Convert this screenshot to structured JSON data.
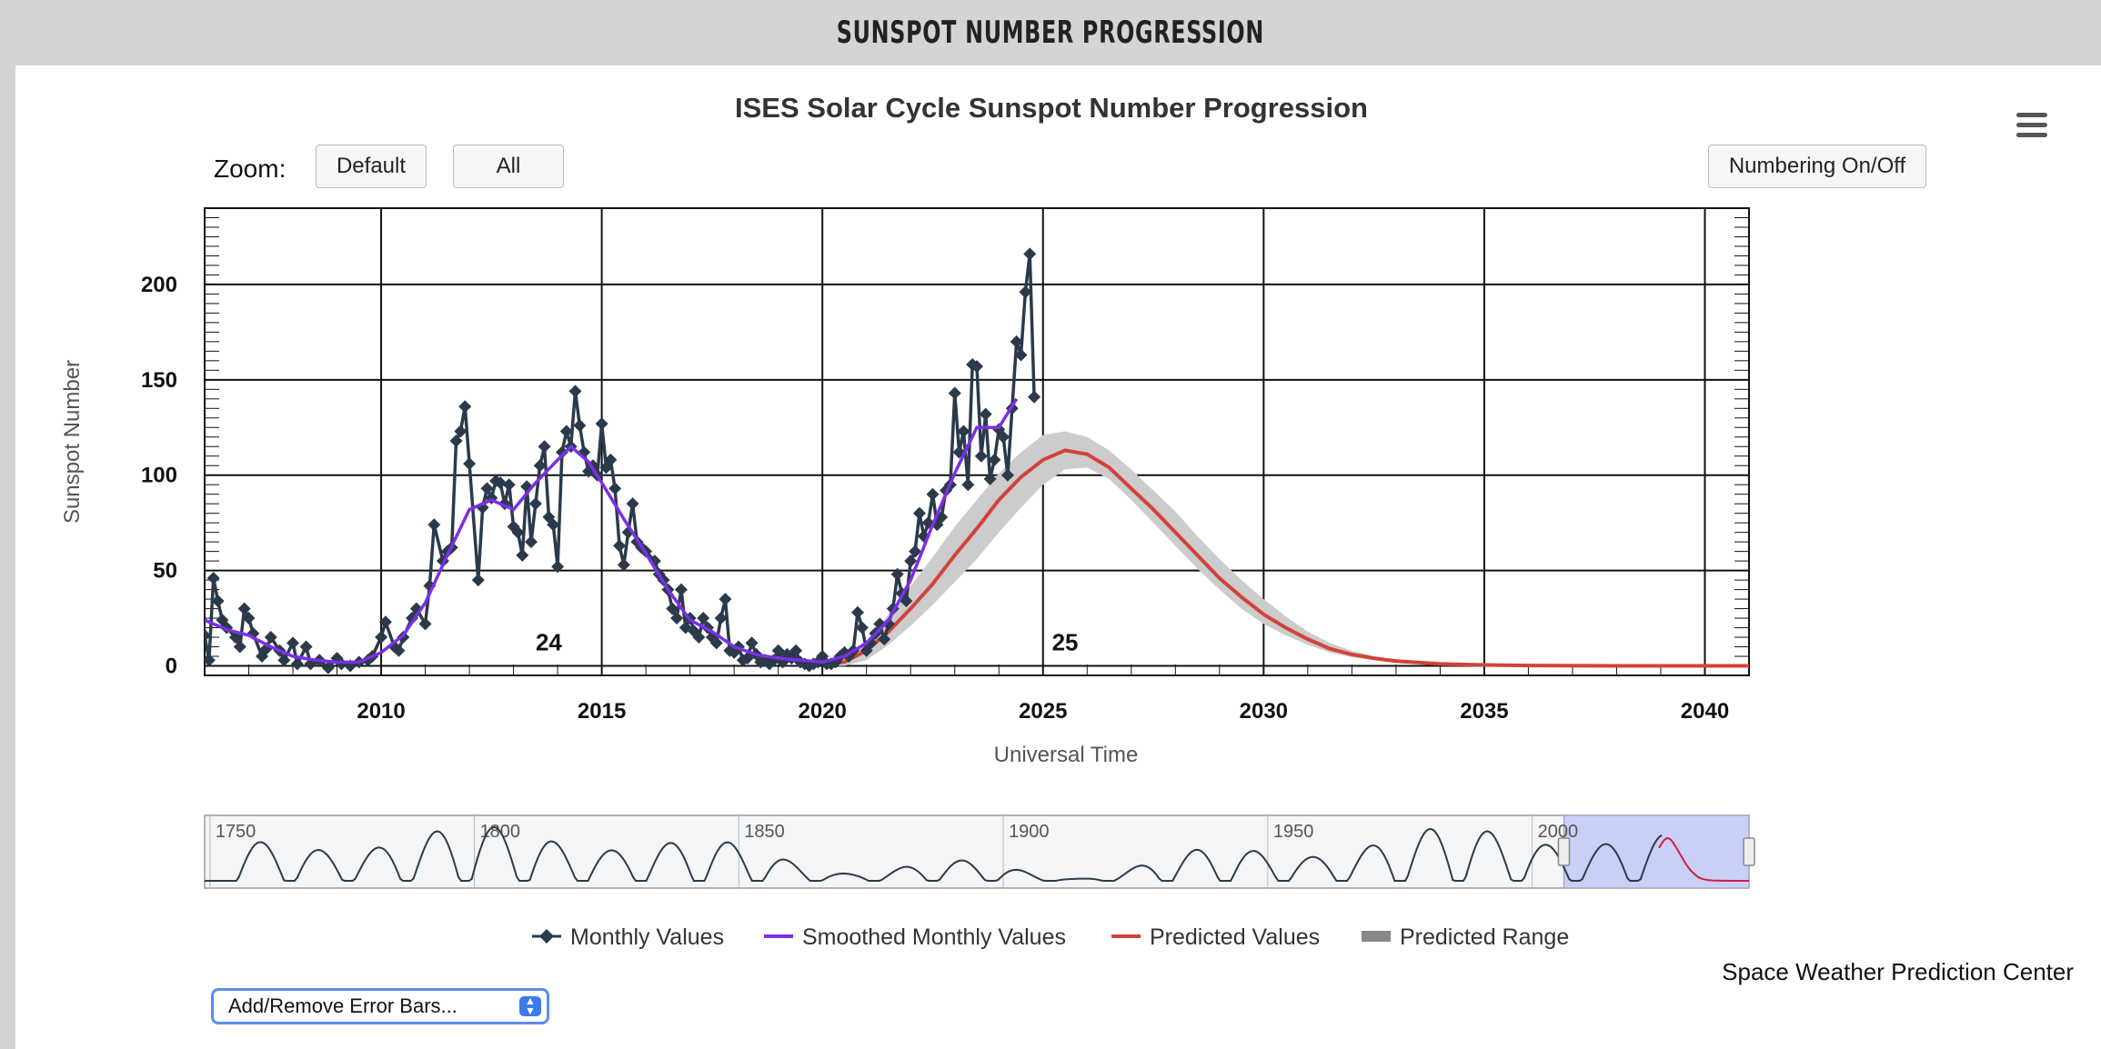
{
  "banner": {
    "title": "SUNSPOT NUMBER PROGRESSION"
  },
  "controls": {
    "zoom_label": "Zoom:",
    "zoom_default": "Default",
    "zoom_all": "All",
    "numbering_toggle": "Numbering On/Off",
    "error_bars_select": "Add/Remove Error Bars...",
    "menu_icon": "hamburger-menu-icon"
  },
  "credit": "Space Weather Prediction Center",
  "colors": {
    "monthly": "#2b3a4a",
    "smoothed": "#7b2fe8",
    "predicted": "#d1433a",
    "range": "#cccccc"
  },
  "chart_data": {
    "type": "line",
    "title": "ISES Solar Cycle Sunspot Number Progression",
    "xlabel": "Universal Time",
    "ylabel": "Sunspot Number",
    "xlim": [
      2006,
      2041
    ],
    "ylim": [
      -5,
      240
    ],
    "x_ticks": [
      2010,
      2015,
      2020,
      2025,
      2030,
      2035,
      2040
    ],
    "y_ticks": [
      0,
      50,
      100,
      150,
      200
    ],
    "grid": true,
    "legend_position": "bottom-center",
    "annotations": [
      {
        "text": "24",
        "x": 2013.8,
        "y": 8
      },
      {
        "text": "25",
        "x": 2025.5,
        "y": 8
      }
    ],
    "series": [
      {
        "name": "Monthly Values",
        "kind": "line-markers",
        "points": [
          [
            2006.0,
            16
          ],
          [
            2006.1,
            3
          ],
          [
            2006.2,
            46
          ],
          [
            2006.3,
            34
          ],
          [
            2006.4,
            24
          ],
          [
            2006.5,
            20
          ],
          [
            2006.7,
            15
          ],
          [
            2006.8,
            10
          ],
          [
            2006.9,
            30
          ],
          [
            2007.0,
            25
          ],
          [
            2007.1,
            17
          ],
          [
            2007.3,
            5
          ],
          [
            2007.4,
            9
          ],
          [
            2007.5,
            15
          ],
          [
            2007.7,
            8
          ],
          [
            2007.8,
            3
          ],
          [
            2008.0,
            12
          ],
          [
            2008.1,
            1
          ],
          [
            2008.3,
            10
          ],
          [
            2008.4,
            1
          ],
          [
            2008.6,
            3
          ],
          [
            2008.8,
            -1
          ],
          [
            2009.0,
            4
          ],
          [
            2009.1,
            1
          ],
          [
            2009.3,
            0
          ],
          [
            2009.5,
            2
          ],
          [
            2009.7,
            3
          ],
          [
            2009.8,
            5
          ],
          [
            2010.0,
            15
          ],
          [
            2010.1,
            23
          ],
          [
            2010.3,
            10
          ],
          [
            2010.4,
            8
          ],
          [
            2010.5,
            15
          ],
          [
            2010.7,
            25
          ],
          [
            2010.8,
            30
          ],
          [
            2011.0,
            22
          ],
          [
            2011.1,
            42
          ],
          [
            2011.2,
            74
          ],
          [
            2011.4,
            55
          ],
          [
            2011.5,
            60
          ],
          [
            2011.6,
            62
          ],
          [
            2011.7,
            118
          ],
          [
            2011.8,
            123
          ],
          [
            2011.9,
            136
          ],
          [
            2012.0,
            106
          ],
          [
            2012.2,
            45
          ],
          [
            2012.3,
            83
          ],
          [
            2012.4,
            93
          ],
          [
            2012.5,
            88
          ],
          [
            2012.6,
            97
          ],
          [
            2012.7,
            96
          ],
          [
            2012.8,
            85
          ],
          [
            2012.9,
            95
          ],
          [
            2013.0,
            73
          ],
          [
            2013.1,
            70
          ],
          [
            2013.2,
            58
          ],
          [
            2013.3,
            94
          ],
          [
            2013.4,
            65
          ],
          [
            2013.5,
            85
          ],
          [
            2013.6,
            105
          ],
          [
            2013.7,
            115
          ],
          [
            2013.8,
            78
          ],
          [
            2013.9,
            74
          ],
          [
            2014.0,
            52
          ],
          [
            2014.1,
            112
          ],
          [
            2014.2,
            123
          ],
          [
            2014.3,
            115
          ],
          [
            2014.4,
            144
          ],
          [
            2014.5,
            126
          ],
          [
            2014.6,
            112
          ],
          [
            2014.7,
            102
          ],
          [
            2014.8,
            105
          ],
          [
            2014.9,
            100
          ],
          [
            2015.0,
            127
          ],
          [
            2015.1,
            104
          ],
          [
            2015.2,
            108
          ],
          [
            2015.3,
            93
          ],
          [
            2015.4,
            63
          ],
          [
            2015.5,
            53
          ],
          [
            2015.6,
            70
          ],
          [
            2015.7,
            85
          ],
          [
            2015.8,
            65
          ],
          [
            2015.9,
            62
          ],
          [
            2016.0,
            60
          ],
          [
            2016.2,
            55
          ],
          [
            2016.3,
            48
          ],
          [
            2016.4,
            45
          ],
          [
            2016.5,
            40
          ],
          [
            2016.6,
            30
          ],
          [
            2016.7,
            25
          ],
          [
            2016.8,
            40
          ],
          [
            2016.9,
            20
          ],
          [
            2017.0,
            25
          ],
          [
            2017.1,
            18
          ],
          [
            2017.2,
            15
          ],
          [
            2017.3,
            25
          ],
          [
            2017.4,
            20
          ],
          [
            2017.5,
            15
          ],
          [
            2017.6,
            12
          ],
          [
            2017.7,
            25
          ],
          [
            2017.8,
            35
          ],
          [
            2017.9,
            8
          ],
          [
            2018.0,
            7
          ],
          [
            2018.1,
            10
          ],
          [
            2018.2,
            3
          ],
          [
            2018.3,
            4
          ],
          [
            2018.4,
            12
          ],
          [
            2018.5,
            6
          ],
          [
            2018.6,
            2
          ],
          [
            2018.7,
            3
          ],
          [
            2018.8,
            1
          ],
          [
            2018.9,
            3
          ],
          [
            2019.0,
            8
          ],
          [
            2019.1,
            2
          ],
          [
            2019.2,
            6
          ],
          [
            2019.3,
            4
          ],
          [
            2019.4,
            8
          ],
          [
            2019.5,
            2
          ],
          [
            2019.6,
            1
          ],
          [
            2019.7,
            0
          ],
          [
            2019.8,
            1
          ],
          [
            2019.9,
            2
          ],
          [
            2020.0,
            5
          ],
          [
            2020.1,
            1
          ],
          [
            2020.2,
            1
          ],
          [
            2020.3,
            2
          ],
          [
            2020.4,
            5
          ],
          [
            2020.5,
            7
          ],
          [
            2020.6,
            5
          ],
          [
            2020.7,
            8
          ],
          [
            2020.8,
            28
          ],
          [
            2020.9,
            20
          ],
          [
            2021.0,
            8
          ],
          [
            2021.1,
            12
          ],
          [
            2021.2,
            17
          ],
          [
            2021.3,
            22
          ],
          [
            2021.4,
            14
          ],
          [
            2021.5,
            22
          ],
          [
            2021.6,
            30
          ],
          [
            2021.7,
            48
          ],
          [
            2021.8,
            38
          ],
          [
            2021.9,
            34
          ],
          [
            2022.0,
            55
          ],
          [
            2022.1,
            60
          ],
          [
            2022.2,
            80
          ],
          [
            2022.3,
            68
          ],
          [
            2022.4,
            75
          ],
          [
            2022.5,
            90
          ],
          [
            2022.6,
            74
          ],
          [
            2022.7,
            78
          ],
          [
            2022.8,
            92
          ],
          [
            2022.9,
            95
          ],
          [
            2023.0,
            143
          ],
          [
            2023.1,
            112
          ],
          [
            2023.2,
            123
          ],
          [
            2023.3,
            95
          ],
          [
            2023.4,
            158
          ],
          [
            2023.5,
            157
          ],
          [
            2023.6,
            110
          ],
          [
            2023.7,
            132
          ],
          [
            2023.8,
            98
          ],
          [
            2023.9,
            108
          ],
          [
            2024.0,
            124
          ],
          [
            2024.1,
            120
          ],
          [
            2024.2,
            100
          ],
          [
            2024.3,
            135
          ],
          [
            2024.4,
            170
          ],
          [
            2024.5,
            163
          ],
          [
            2024.6,
            196
          ],
          [
            2024.7,
            216
          ],
          [
            2024.8,
            141
          ]
        ]
      },
      {
        "name": "Smoothed Monthly Values",
        "kind": "line",
        "points": [
          [
            2006.0,
            24
          ],
          [
            2006.5,
            19
          ],
          [
            2007.0,
            16
          ],
          [
            2007.5,
            10
          ],
          [
            2008.0,
            5
          ],
          [
            2008.5,
            3
          ],
          [
            2009.0,
            2
          ],
          [
            2009.5,
            2
          ],
          [
            2010.0,
            7
          ],
          [
            2010.5,
            16
          ],
          [
            2011.0,
            33
          ],
          [
            2011.5,
            58
          ],
          [
            2012.0,
            82
          ],
          [
            2012.5,
            87
          ],
          [
            2013.0,
            82
          ],
          [
            2013.5,
            96
          ],
          [
            2014.0,
            108
          ],
          [
            2014.3,
            115
          ],
          [
            2014.7,
            107
          ],
          [
            2015.0,
            96
          ],
          [
            2015.5,
            77
          ],
          [
            2016.0,
            59
          ],
          [
            2016.5,
            40
          ],
          [
            2017.0,
            24
          ],
          [
            2017.5,
            18
          ],
          [
            2018.0,
            10
          ],
          [
            2018.5,
            6
          ],
          [
            2019.0,
            4
          ],
          [
            2019.5,
            3
          ],
          [
            2020.0,
            2
          ],
          [
            2020.5,
            5
          ],
          [
            2021.0,
            12
          ],
          [
            2021.5,
            24
          ],
          [
            2022.0,
            45
          ],
          [
            2022.5,
            74
          ],
          [
            2023.0,
            101
          ],
          [
            2023.5,
            125
          ],
          [
            2024.0,
            125
          ],
          [
            2024.4,
            140
          ]
        ]
      },
      {
        "name": "Predicted Values",
        "kind": "line",
        "points": [
          [
            2020.0,
            1
          ],
          [
            2020.5,
            2
          ],
          [
            2021.0,
            8
          ],
          [
            2021.5,
            18
          ],
          [
            2022.0,
            30
          ],
          [
            2022.5,
            43
          ],
          [
            2023.0,
            58
          ],
          [
            2023.5,
            72
          ],
          [
            2024.0,
            87
          ],
          [
            2024.5,
            99
          ],
          [
            2025.0,
            108
          ],
          [
            2025.5,
            113
          ],
          [
            2026.0,
            111
          ],
          [
            2026.5,
            104
          ],
          [
            2027.0,
            93
          ],
          [
            2027.5,
            82
          ],
          [
            2028.0,
            70
          ],
          [
            2028.5,
            58
          ],
          [
            2029.0,
            46
          ],
          [
            2029.5,
            36
          ],
          [
            2030.0,
            27
          ],
          [
            2030.5,
            20
          ],
          [
            2031.0,
            14
          ],
          [
            2031.5,
            9
          ],
          [
            2032.0,
            6
          ],
          [
            2032.5,
            4
          ],
          [
            2033.0,
            2.5
          ],
          [
            2034.0,
            1
          ],
          [
            2035.0,
            0.5
          ],
          [
            2036.0,
            0.2
          ],
          [
            2038.0,
            0
          ],
          [
            2041.0,
            0
          ]
        ]
      },
      {
        "name": "Predicted Range",
        "kind": "band",
        "points": [
          [
            2020.0,
            0,
            2
          ],
          [
            2020.5,
            0,
            4
          ],
          [
            2021.0,
            3,
            13
          ],
          [
            2021.5,
            11,
            27
          ],
          [
            2022.0,
            21,
            42
          ],
          [
            2022.5,
            32,
            57
          ],
          [
            2023.0,
            44,
            73
          ],
          [
            2023.5,
            56,
            87
          ],
          [
            2024.0,
            70,
            101
          ],
          [
            2024.5,
            83,
            112
          ],
          [
            2025.0,
            95,
            121
          ],
          [
            2025.5,
            103,
            123
          ],
          [
            2026.0,
            104,
            120
          ],
          [
            2026.5,
            98,
            113
          ],
          [
            2027.0,
            87,
            103
          ],
          [
            2027.5,
            75,
            92
          ],
          [
            2028.0,
            63,
            81
          ],
          [
            2028.5,
            51,
            68
          ],
          [
            2029.0,
            40,
            56
          ],
          [
            2029.5,
            30,
            45
          ],
          [
            2030.0,
            22,
            35
          ],
          [
            2030.5,
            16,
            26
          ],
          [
            2031.0,
            11,
            18
          ],
          [
            2031.5,
            7,
            12
          ],
          [
            2032.0,
            4.5,
            8
          ],
          [
            2032.5,
            3,
            5
          ],
          [
            2033.0,
            1.5,
            3.5
          ],
          [
            2034.0,
            0.5,
            2
          ],
          [
            2035.0,
            0.2,
            1
          ],
          [
            2036.0,
            0,
            0.4
          ],
          [
            2038.0,
            0,
            0.1
          ],
          [
            2041.0,
            0,
            0
          ]
        ]
      }
    ],
    "navigator": {
      "range": [
        1749,
        2041
      ],
      "ticks": [
        1750,
        1800,
        1850,
        1900,
        1950,
        2000
      ],
      "selected": [
        2006,
        2041
      ]
    }
  }
}
